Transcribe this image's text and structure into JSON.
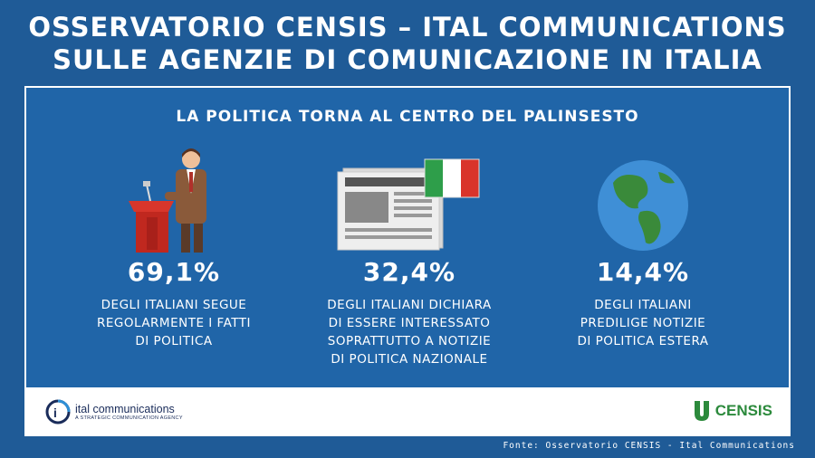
{
  "header": {
    "title_line1": "OSSERVATORIO CENSIS – ITAL COMMUNICATIONS",
    "title_line2": "SULLE AGENZIE DI COMUNICAZIONE IN ITALIA"
  },
  "card": {
    "subtitle": "LA POLITICA TORNA AL CENTRO DEL PALINSESTO",
    "stats": [
      {
        "icon": "politician-podium-icon",
        "value": "69,1%",
        "description": "DEGLI ITALIANI SEGUE\nREGOLARMENTE I FATTI\nDI POLITICA"
      },
      {
        "icon": "newspaper-italian-flag-icon",
        "value": "32,4%",
        "description": "DEGLI ITALIANI DICHIARA\nDI ESSERE INTERESSATO\nSOPRATTUTTO A NOTIZIE\nDI POLITICA NAZIONALE"
      },
      {
        "icon": "globe-icon",
        "value": "14,4%",
        "description": "DEGLI ITALIANI\nPREDILIGE NOTIZIE\nDI POLITICA ESTERA"
      }
    ]
  },
  "footer": {
    "ic_name": "ital communications",
    "ic_tagline": "A STRATEGIC COMMUNICATION AGENCY",
    "censis_name": "CENSIS",
    "source": "Fonte: Osservatorio CENSIS - Ital Communications"
  },
  "colors": {
    "background": "#1f5b97",
    "card": "#2065a8",
    "censis_green": "#2c8a3c",
    "ic_navy": "#1a2c5a"
  }
}
